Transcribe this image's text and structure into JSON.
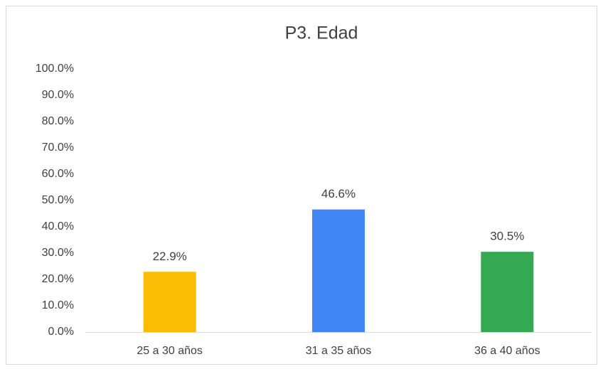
{
  "chart_data": {
    "type": "bar",
    "title": "P3. Edad",
    "categories": [
      "25 a 30 años",
      "31 a 35 años",
      "36 a 40 años"
    ],
    "values": [
      22.9,
      46.6,
      30.5
    ],
    "value_labels": [
      "22.9%",
      "46.6%",
      "30.5%"
    ],
    "colors": [
      "#fbbc04",
      "#4285f4",
      "#34a853"
    ],
    "ylim": [
      0,
      100
    ],
    "yticks": [
      {
        "value": 0,
        "label": "0.0%"
      },
      {
        "value": 10,
        "label": "10.0%"
      },
      {
        "value": 20,
        "label": "20.0%"
      },
      {
        "value": 30,
        "label": "30.0%"
      },
      {
        "value": 40,
        "label": "40.0%"
      },
      {
        "value": 50,
        "label": "50.0%"
      },
      {
        "value": 60,
        "label": "60.0%"
      },
      {
        "value": 70,
        "label": "70.0%"
      },
      {
        "value": 80,
        "label": "80.0%"
      },
      {
        "value": 90,
        "label": "90.0%"
      },
      {
        "value": 100,
        "label": "100.0%"
      }
    ],
    "grid": false
  }
}
